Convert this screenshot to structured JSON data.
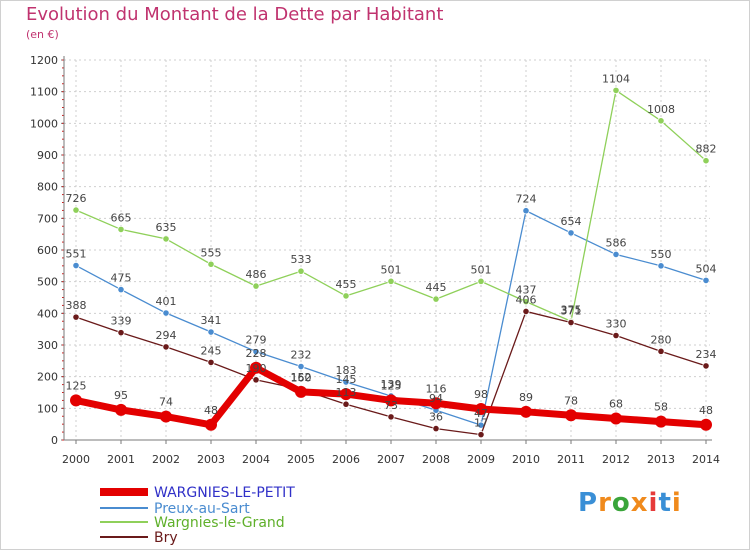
{
  "title": "Evolution du Montant de la Dette par Habitant",
  "unit": "(en €)",
  "brand": "Proxiti",
  "brand_colors": [
    "#3a8fd6",
    "#f08a1c",
    "#3aa53a",
    "#f08a1c",
    "#e63a3a",
    "#3a8fd6",
    "#f08a1c"
  ],
  "chart_data": {
    "type": "line",
    "xlabel": "",
    "ylabel": "",
    "ylim": [
      0,
      1200
    ],
    "yticks": [
      0,
      100,
      200,
      300,
      400,
      500,
      600,
      700,
      800,
      900,
      1000,
      1100,
      1200
    ],
    "grid": true,
    "legend": "bottom-left",
    "x": [
      2000,
      2001,
      2002,
      2003,
      2004,
      2005,
      2006,
      2007,
      2008,
      2009,
      2010,
      2011,
      2012,
      2013,
      2014
    ],
    "series": [
      {
        "name": "WARGNIES-LE-PETIT",
        "color": "#e30000",
        "text_color": "#3030c8",
        "values": [
          125,
          95,
          74,
          48,
          228,
          152,
          145,
          125,
          116,
          98,
          89,
          78,
          68,
          58,
          48
        ]
      },
      {
        "name": "Preux-au-Sart",
        "color": "#4a8cd0",
        "text_color": "#4a8cd0",
        "values": [
          551,
          475,
          401,
          341,
          279,
          232,
          183,
          139,
          94,
          47,
          724,
          654,
          586,
          550,
          504
        ]
      },
      {
        "name": "Wargnies-le-Grand",
        "color": "#8fd05a",
        "text_color": "#5fb02a",
        "values": [
          726,
          665,
          635,
          555,
          486,
          533,
          455,
          501,
          445,
          501,
          437,
          375,
          1104,
          1008,
          882
        ]
      },
      {
        "name": "Bry",
        "color": "#6a1a1a",
        "text_color": "#6a1a1a",
        "values": [
          388,
          339,
          294,
          245,
          190,
          160,
          113,
          73,
          36,
          17,
          406,
          371,
          330,
          280,
          234
        ]
      }
    ]
  }
}
